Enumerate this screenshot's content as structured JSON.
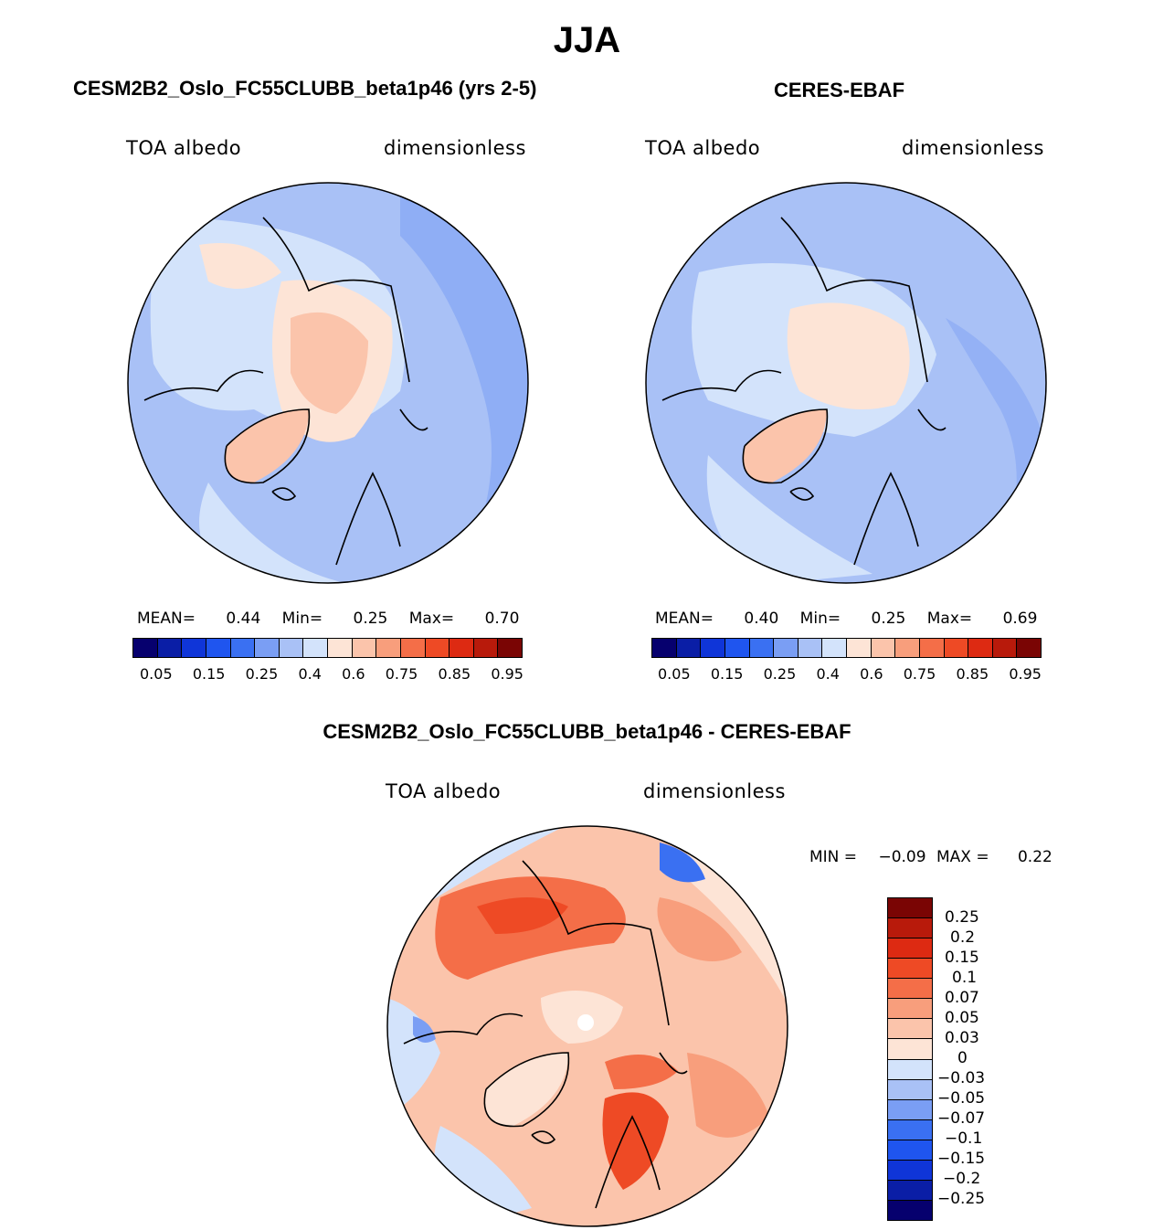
{
  "figure": {
    "season": "JJA",
    "panel_top_left": {
      "title": "CESM2B2_Oslo_FC55CLUBB_beta1p46 (yrs 2-5)",
      "variable": "TOA albedo",
      "units": "dimensionless",
      "mean_label": "MEAN=",
      "mean_value": "0.44",
      "min_label": "Min=",
      "min_value": "0.25",
      "max_label": "Max=",
      "max_value": "0.70"
    },
    "panel_top_right": {
      "title": "CERES-EBAF",
      "variable": "TOA albedo",
      "units": "dimensionless",
      "mean_label": "MEAN=",
      "mean_value": "0.40",
      "min_label": "Min=",
      "min_value": "0.25",
      "max_label": "Max=",
      "max_value": "0.69"
    },
    "panel_bottom": {
      "title": "CESM2B2_Oslo_FC55CLUBB_beta1p46 - CERES-EBAF",
      "variable": "TOA albedo",
      "units": "dimensionless",
      "min_label": "MIN =",
      "min_value": "−0.09",
      "max_label": "MAX =",
      "max_value": "0.22"
    }
  },
  "chart_data": [
    {
      "type": "heatmap",
      "title": "CESM2B2_Oslo_FC55CLUBB_beta1p46 (yrs 2-5)",
      "projection": "north polar stereographic",
      "colorbar_tick_labels": [
        "0.05",
        "0.15",
        "0.25",
        "0.4",
        "0.6",
        "0.75",
        "0.85",
        "0.95"
      ],
      "colorbar_colors": [
        "#06006e",
        "#0a1ea6",
        "#0f35d8",
        "#1f55ef",
        "#3a70f2",
        "#7a9ef4",
        "#a9c1f6",
        "#d3e3fb",
        "#fde4d6",
        "#fbc4ab",
        "#f89e7c",
        "#f46e48",
        "#ee4a25",
        "#dd2a12",
        "#b81a0b",
        "#7a0504"
      ],
      "mean": 0.44,
      "min": 0.25,
      "max": 0.7
    },
    {
      "type": "heatmap",
      "title": "CERES-EBAF",
      "projection": "north polar stereographic",
      "colorbar_tick_labels": [
        "0.05",
        "0.15",
        "0.25",
        "0.4",
        "0.6",
        "0.75",
        "0.85",
        "0.95"
      ],
      "colorbar_colors": [
        "#06006e",
        "#0a1ea6",
        "#0f35d8",
        "#1f55ef",
        "#3a70f2",
        "#7a9ef4",
        "#a9c1f6",
        "#d3e3fb",
        "#fde4d6",
        "#fbc4ab",
        "#f89e7c",
        "#f46e48",
        "#ee4a25",
        "#dd2a12",
        "#b81a0b",
        "#7a0504"
      ],
      "mean": 0.4,
      "min": 0.25,
      "max": 0.69
    },
    {
      "type": "heatmap",
      "title": "CESM2B2_Oslo_FC55CLUBB_beta1p46 - CERES-EBAF",
      "projection": "north polar stereographic",
      "colorbar_tick_labels": [
        "0.25",
        "0.2",
        "0.15",
        "0.1",
        "0.07",
        "0.05",
        "0.03",
        "0",
        "−0.03",
        "−0.05",
        "−0.07",
        "−0.1",
        "−0.15",
        "−0.2",
        "−0.25"
      ],
      "colorbar_colors": [
        "#7a0504",
        "#b81a0b",
        "#dd2a12",
        "#ee4a25",
        "#f46e48",
        "#f89e7c",
        "#fbc4ab",
        "#fde4d6",
        "#d3e3fb",
        "#a9c1f6",
        "#7a9ef4",
        "#3a70f2",
        "#1f55ef",
        "#0f35d8",
        "#0a1ea6",
        "#06006e"
      ],
      "min": -0.09,
      "max": 0.22
    }
  ]
}
